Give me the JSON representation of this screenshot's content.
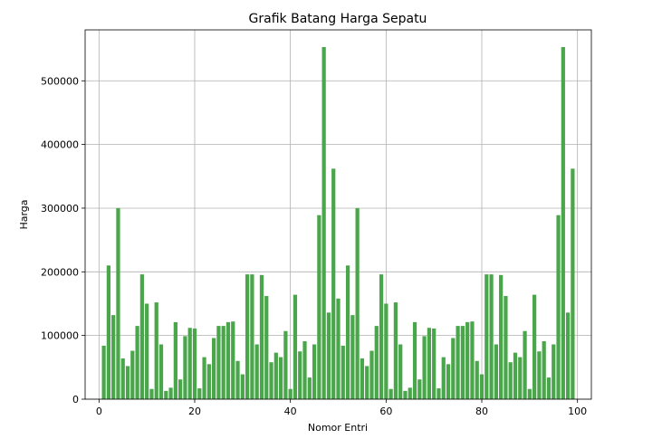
{
  "chart_data": {
    "type": "bar",
    "title": "Grafik Batang Harga Sepatu",
    "xlabel": "Nomor Entri",
    "ylabel": "Harga",
    "x": [
      1,
      2,
      3,
      4,
      5,
      6,
      7,
      8,
      9,
      10,
      11,
      12,
      13,
      14,
      15,
      16,
      17,
      18,
      19,
      20,
      21,
      22,
      23,
      24,
      25,
      26,
      27,
      28,
      29,
      30,
      31,
      32,
      33,
      34,
      35,
      36,
      37,
      38,
      39,
      40,
      41,
      42,
      43,
      44,
      45,
      46,
      47,
      48,
      49,
      50,
      51,
      52,
      53,
      54,
      55,
      56,
      57,
      58,
      59,
      60,
      61,
      62,
      63,
      64,
      65,
      66,
      67,
      68,
      69,
      70,
      71,
      72,
      73,
      74,
      75,
      76,
      77,
      78,
      79,
      80,
      81,
      82,
      83,
      84,
      85,
      86,
      87,
      88,
      89,
      90,
      91,
      92,
      93,
      94,
      95,
      96,
      97,
      98,
      99
    ],
    "values": [
      84000,
      210000,
      132000,
      300000,
      64000,
      52000,
      76000,
      115000,
      196000,
      150000,
      16000,
      152000,
      86000,
      13000,
      18000,
      121000,
      31000,
      99000,
      112000,
      111000,
      17000,
      66000,
      55000,
      96000,
      115000,
      115000,
      121000,
      122000,
      60000,
      39000,
      196000,
      196000,
      86000,
      195000,
      162000,
      58000,
      73000,
      66000,
      107000,
      16000,
      164000,
      75000,
      91000,
      34000,
      86000,
      289000,
      553000,
      136000,
      362000,
      158000,
      84000,
      210000,
      132000,
      300000,
      64000,
      52000,
      76000,
      115000,
      196000,
      150000,
      16000,
      152000,
      86000,
      13000,
      18000,
      121000,
      31000,
      99000,
      112000,
      111000,
      17000,
      66000,
      55000,
      96000,
      115000,
      115000,
      121000,
      122000,
      60000,
      39000,
      196000,
      196000,
      86000,
      195000,
      162000,
      58000,
      73000,
      66000,
      107000,
      16000,
      164000,
      75000,
      91000,
      34000,
      86000,
      289000,
      553000,
      136000,
      362000
    ],
    "xlim": [
      -2.9,
      102.9
    ],
    "ylim": [
      0,
      580000
    ],
    "xticks": [
      0,
      20,
      40,
      60,
      80,
      100
    ],
    "xtick_labels": [
      "0",
      "20",
      "40",
      "60",
      "80",
      "100"
    ],
    "yticks": [
      0,
      100000,
      200000,
      300000,
      400000,
      500000
    ],
    "ytick_labels": [
      "0",
      "100000",
      "200000",
      "300000",
      "400000",
      "500000"
    ],
    "bar_width": 0.8,
    "grid": true,
    "bar_color": "#4aa64a"
  }
}
